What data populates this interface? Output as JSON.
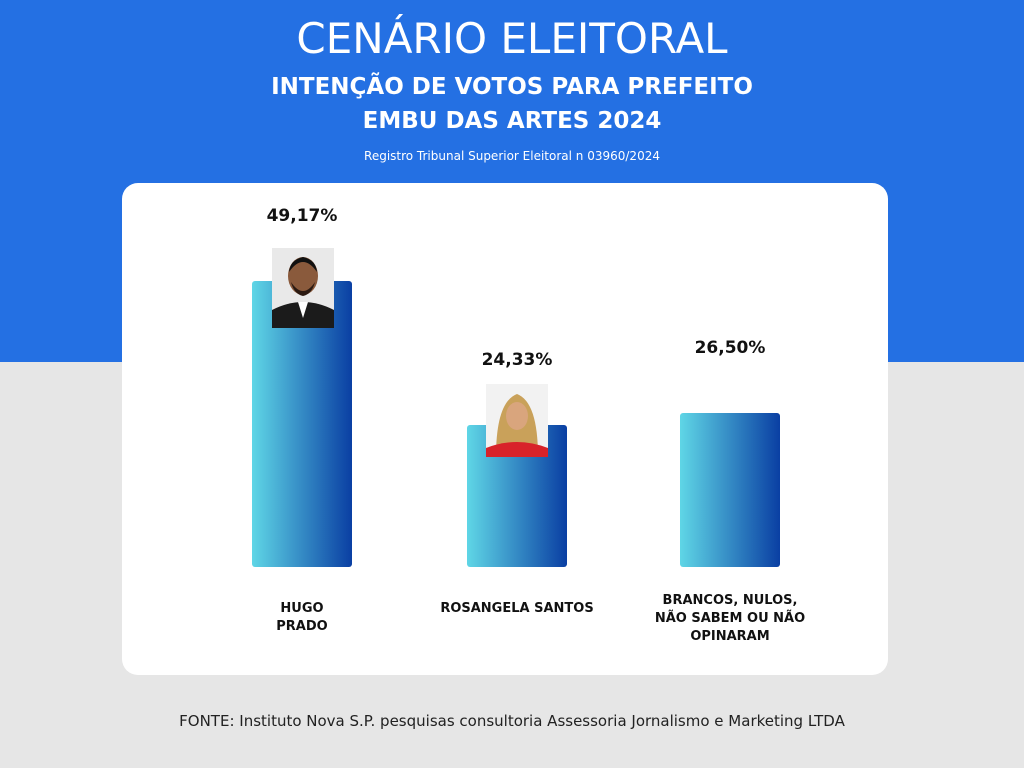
{
  "chart_data": {
    "type": "bar",
    "title": "CENÁRIO ELEITORAL",
    "subtitle_lines": [
      "INTENÇÃO DE VOTOS PARA PREFEITO",
      "EMBU DAS ARTES 2024"
    ],
    "note": "Registro Tribunal Superior Eleitoral n 03960/2024",
    "categories": [
      "HUGO PRADO",
      "ROSANGELA SANTOS",
      "BRANCOS, NULOS, NÃO SABEM OU NÃO OPINARAM"
    ],
    "values": [
      49.17,
      24.33,
      26.5
    ],
    "value_labels": [
      "49,17%",
      "24,33%",
      "26,50%"
    ],
    "color": [
      "#5fd6e6",
      "#0a3fa3"
    ],
    "source": "FONTE: Instituto Nova S.P. pesquisas consultoria Assessoria Jornalismo e Marketing  LTDA"
  }
}
